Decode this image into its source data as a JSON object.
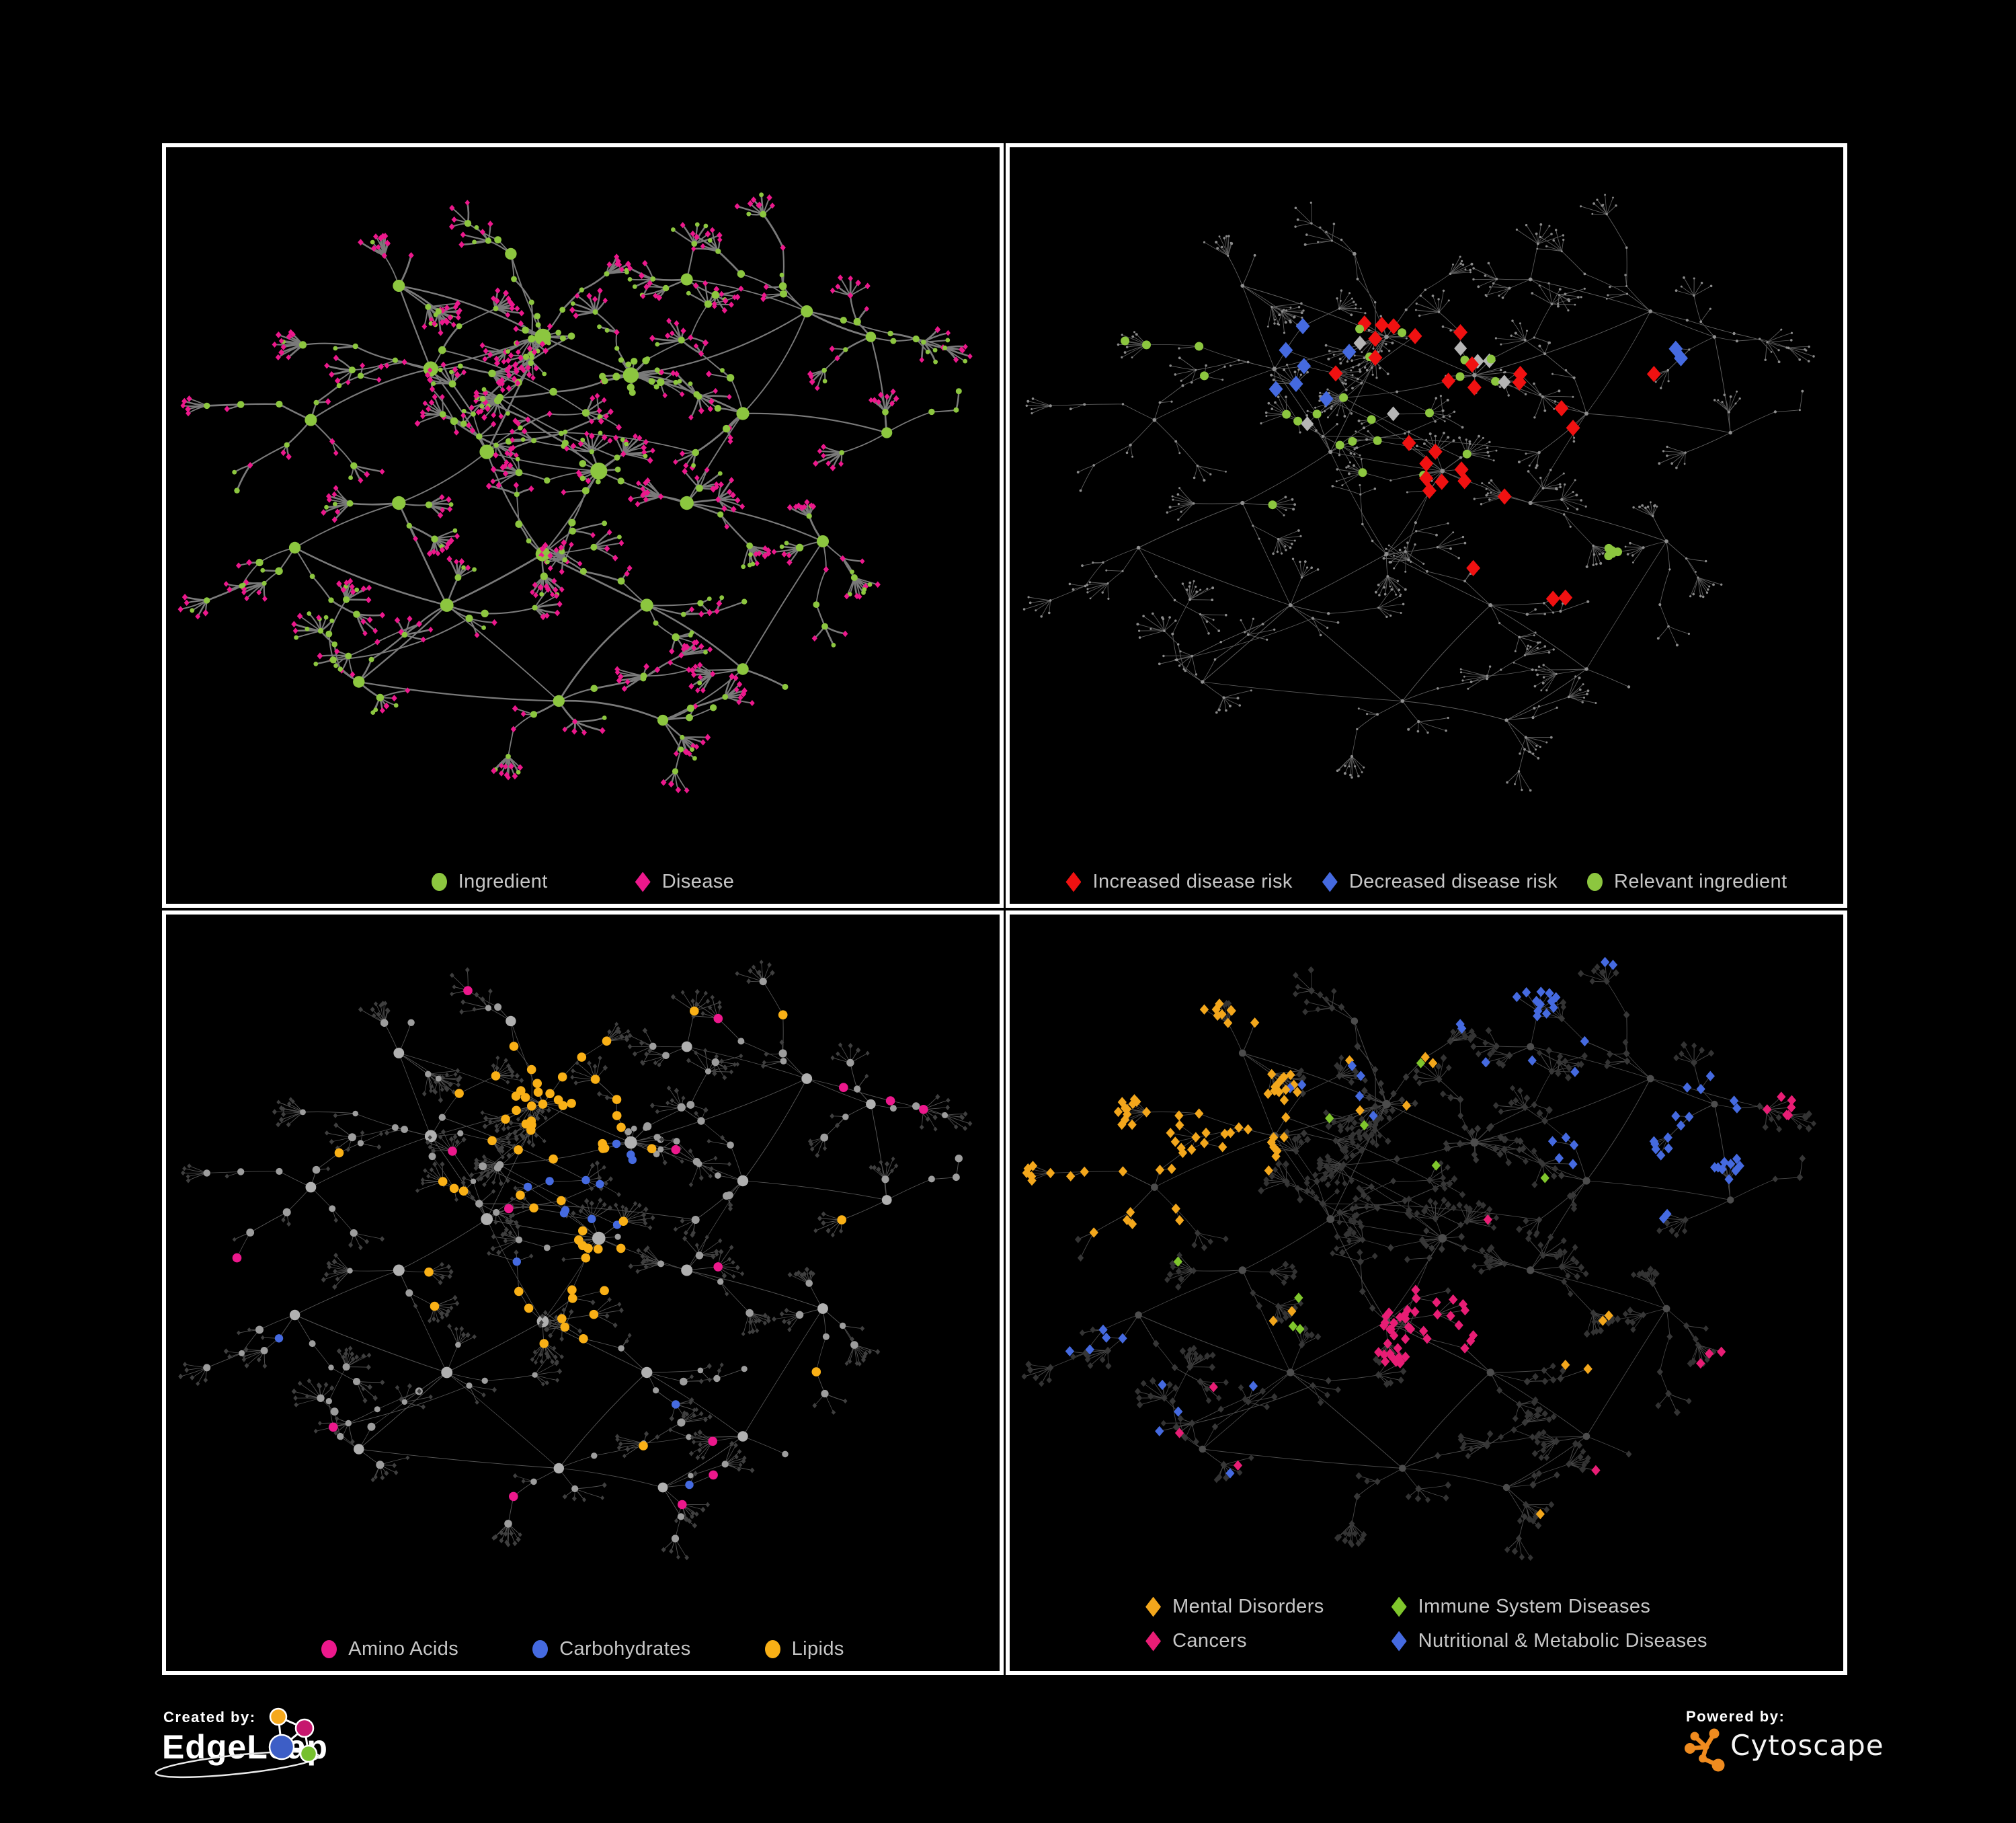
{
  "page": {
    "background": "#000000",
    "panel_border_color": "#ffffff",
    "legend_text_color": "#c6c6c6"
  },
  "footer": {
    "created_by_label": "Created by:",
    "created_by_brand": "EdgeLeap",
    "powered_by_label": "Powered by:",
    "powered_by_brand": "Cytoscape"
  },
  "panels": [
    {
      "name": "ingredient-disease",
      "legend_gap": 130,
      "legend": [
        {
          "shape": "circle",
          "color": "#8cc63f",
          "label": "Ingredient"
        },
        {
          "shape": "diamond",
          "color": "#ec188c",
          "label": "Disease"
        }
      ],
      "style": {
        "bend": 0.18,
        "edge": {
          "color": "#858585",
          "width": 2.3,
          "opacity": 0.92,
          "jitter": 0.5
        },
        "hubScale": [
          4.5,
          6
        ],
        "nodes": {
          "hub": {
            "shape": "circle",
            "color": "#8cc63f",
            "size": [
              6,
              10
            ]
          },
          "mid": {
            "shape": "circle",
            "color": "#8cc63f",
            "size": [
              3.6,
              5.8
            ],
            "altShape": "diamond",
            "altColor": "#ec188c",
            "altSize": 4.4,
            "altFrac": 0.14
          },
          "leaf": {
            "shape": "diamond",
            "color": "#ec188c",
            "size": [
              3.9,
              4.7
            ],
            "altShape": "circle",
            "altColor": "#8cc63f",
            "altSize": 3.4,
            "altFrac": 0.2
          }
        },
        "highlights": []
      }
    },
    {
      "name": "disease-risk",
      "legend_gap": 44,
      "legend": [
        {
          "shape": "diamond",
          "color": "#f01111",
          "label": "Increased disease risk"
        },
        {
          "shape": "diamond",
          "color": "#456ae0",
          "label": "Decreased disease risk"
        },
        {
          "shape": "circle",
          "color": "#8cc63f",
          "label": "Relevant ingredient"
        }
      ],
      "style": {
        "bend": 0.07,
        "edge": {
          "color": "#6e6e6e",
          "width": 0.9,
          "opacity": 0.85,
          "jitter": 0.2
        },
        "hubScale": [
          2.2,
          0.9
        ],
        "nodes": {
          "hub": {
            "shape": "circle",
            "color": "#8f8f8f",
            "size": [
              2,
              3
            ]
          },
          "mid": {
            "shape": "circle",
            "color": "#8f8f8f",
            "size": [
              1.5,
              2.2
            ]
          },
          "leaf": {
            "shape": "circle",
            "color": "#8a8a8a",
            "size": [
              1.4,
              2
            ]
          }
        },
        "highlights": [
          {
            "shape": "diamond",
            "color": "#f01111",
            "size": 11,
            "count": 22,
            "x": [
              0.3,
              0.62
            ],
            "y": [
              0.24,
              0.54
            ],
            "types": [
              "mid"
            ]
          },
          {
            "shape": "diamond",
            "color": "#f01111",
            "size": 11,
            "count": 3,
            "x": [
              0.52,
              0.68
            ],
            "y": [
              0.58,
              0.72
            ],
            "types": [
              "mid",
              "leaf"
            ]
          },
          {
            "shape": "diamond",
            "color": "#f01111",
            "size": 11,
            "count": 3,
            "x": [
              0.66,
              0.8
            ],
            "y": [
              0.28,
              0.44
            ],
            "types": [
              "mid",
              "leaf"
            ]
          },
          {
            "shape": "diamond",
            "color": "#456ae0",
            "size": 11,
            "count": 7,
            "x": [
              0.26,
              0.37
            ],
            "y": [
              0.3,
              0.46
            ],
            "types": [
              "mid"
            ],
            "cluster": true
          },
          {
            "shape": "diamond",
            "color": "#456ae0",
            "size": 11,
            "count": 2,
            "x": [
              0.78,
              0.88
            ],
            "y": [
              0.28,
              0.38
            ],
            "types": [
              "mid",
              "leaf"
            ],
            "cluster": true
          },
          {
            "shape": "diamond",
            "color": "#b5b5b5",
            "size": 10,
            "count": 7,
            "x": [
              0.24,
              0.62
            ],
            "y": [
              0.28,
              0.6
            ],
            "types": [
              "mid"
            ]
          },
          {
            "shape": "circle",
            "color": "#8cc63f",
            "size": 6.5,
            "count": 20,
            "x": [
              0.28,
              0.62
            ],
            "y": [
              0.24,
              0.56
            ],
            "types": [
              "mid"
            ]
          },
          {
            "shape": "circle",
            "color": "#8cc63f",
            "size": 6.5,
            "count": 5,
            "x": [
              0.6,
              0.74
            ],
            "y": [
              0.5,
              0.66
            ],
            "types": [
              "mid",
              "leaf"
            ],
            "cluster": true
          },
          {
            "shape": "circle",
            "color": "#8cc63f",
            "size": 6.5,
            "count": 4,
            "x": [
              0.1,
              0.24
            ],
            "y": [
              0.24,
              0.44
            ],
            "types": [
              "mid",
              "leaf"
            ]
          }
        ]
      }
    },
    {
      "name": "macronutrient-classes",
      "legend_gap": 110,
      "legend": [
        {
          "shape": "circle",
          "color": "#ec188c",
          "label": "Amino Acids"
        },
        {
          "shape": "circle",
          "color": "#456ae0",
          "label": "Carbohydrates"
        },
        {
          "shape": "circle",
          "color": "#f9b016",
          "label": "Lipids"
        }
      ],
      "style": {
        "bend": 0.07,
        "edge": {
          "color": "#9b9b9b",
          "width": 0.85,
          "opacity": 0.55,
          "jitter": 0.3
        },
        "hubScale": [
          5.5,
          3.2
        ],
        "nodes": {
          "hub": {
            "shape": "circle",
            "color": "#b0b0b0",
            "size": [
              6.5,
              9.5
            ]
          },
          "mid": {
            "shape": "circle",
            "color": "#9d9d9d",
            "size": [
              4.2,
              6.2
            ]
          },
          "leaf": {
            "shape": "diamond",
            "color": "#3f3f3f",
            "size": [
              3.1,
              3.9
            ]
          }
        },
        "highlights": [
          {
            "shape": "circle",
            "color": "#f9b016",
            "size": 6.8,
            "count": 34,
            "x": [
              0.28,
              0.52
            ],
            "y": [
              0.14,
              0.42
            ],
            "types": [
              "mid",
              "hub"
            ],
            "cluster": true
          },
          {
            "shape": "circle",
            "color": "#f9b016",
            "size": 6.8,
            "count": 14,
            "x": [
              0.3,
              0.6
            ],
            "y": [
              0.38,
              0.62
            ],
            "types": [
              "mid"
            ]
          },
          {
            "shape": "circle",
            "color": "#f9b016",
            "size": 6.8,
            "count": 9,
            "x": [
              0.45,
              0.6
            ],
            "y": [
              0.55,
              0.7
            ],
            "types": [
              "mid"
            ],
            "cluster": true
          },
          {
            "shape": "circle",
            "color": "#f9b016",
            "size": 6.8,
            "count": 10,
            "x": [
              0.12,
              0.95
            ],
            "y": [
              0.06,
              0.9
            ],
            "types": [
              "mid"
            ]
          },
          {
            "shape": "circle",
            "color": "#456ae0",
            "size": 6.2,
            "count": 11,
            "x": [
              0.38,
              0.52
            ],
            "y": [
              0.26,
              0.44
            ],
            "types": [
              "mid"
            ],
            "cluster": true
          },
          {
            "shape": "circle",
            "color": "#456ae0",
            "size": 6.2,
            "count": 4,
            "x": [
              0.1,
              0.95
            ],
            "y": [
              0.5,
              0.9
            ],
            "types": [
              "mid"
            ]
          },
          {
            "shape": "circle",
            "color": "#ec188c",
            "size": 6.8,
            "count": 15,
            "x": [
              0.04,
              0.96
            ],
            "y": [
              0.04,
              0.94
            ],
            "types": [
              "mid"
            ]
          }
        ]
      }
    },
    {
      "name": "disease-classes",
      "legend_cols": 2,
      "legend": [
        {
          "shape": "diamond",
          "color": "#f3a71c",
          "label": "Mental Disorders"
        },
        {
          "shape": "diamond",
          "color": "#7fc62c",
          "label": "Immune System Diseases"
        },
        {
          "shape": "diamond",
          "color": "#e81d75",
          "label": "Cancers"
        },
        {
          "shape": "diamond",
          "color": "#456ae0",
          "label": "Nutritional & Metabolic Diseases"
        }
      ],
      "style": {
        "bend": 0.07,
        "edge": {
          "color": "#7a7a7a",
          "width": 0.9,
          "opacity": 0.6,
          "jitter": 0.3
        },
        "hubScale": [
          4.2,
          1.6
        ],
        "nodes": {
          "hub": {
            "shape": "circle",
            "color": "#4c4c4c",
            "size": [
              4.2,
              5.6
            ]
          },
          "mid": {
            "shape": "diamond",
            "color": "#373737",
            "size": [
              4.6,
              5.4
            ]
          },
          "leaf": {
            "shape": "diamond",
            "color": "#333333",
            "size": [
              4.2,
              5.2
            ]
          }
        },
        "highlights": [
          {
            "shape": "diamond",
            "color": "#f3a71c",
            "size": 7,
            "count": 72,
            "x": [
              0.02,
              0.3
            ],
            "y": [
              0.24,
              0.62
            ],
            "types": [
              "mid",
              "leaf"
            ],
            "cluster": true
          },
          {
            "shape": "diamond",
            "color": "#f3a71c",
            "size": 7,
            "count": 9,
            "x": [
              0.28,
              0.52
            ],
            "y": [
              0.04,
              0.3
            ],
            "types": [
              "mid",
              "leaf"
            ]
          },
          {
            "shape": "diamond",
            "color": "#f3a71c",
            "size": 7,
            "count": 7,
            "x": [
              0.3,
              0.75
            ],
            "y": [
              0.6,
              0.95
            ],
            "types": [
              "leaf",
              "mid"
            ]
          },
          {
            "shape": "diamond",
            "color": "#e81d75",
            "size": 7,
            "count": 42,
            "x": [
              0.32,
              0.58
            ],
            "y": [
              0.34,
              0.64
            ],
            "types": [
              "mid",
              "leaf"
            ],
            "cluster": true
          },
          {
            "shape": "diamond",
            "color": "#e81d75",
            "size": 7,
            "count": 6,
            "x": [
              0.84,
              0.97
            ],
            "y": [
              0.12,
              0.28
            ],
            "types": [
              "mid",
              "leaf"
            ],
            "cluster": true
          },
          {
            "shape": "diamond",
            "color": "#e81d75",
            "size": 7,
            "count": 8,
            "x": [
              0.04,
              0.96
            ],
            "y": [
              0.45,
              0.95
            ],
            "types": [
              "leaf"
            ]
          },
          {
            "shape": "diamond",
            "color": "#456ae0",
            "size": 7,
            "count": 30,
            "x": [
              0.56,
              0.85
            ],
            "y": [
              0.3,
              0.66
            ],
            "types": [
              "mid",
              "leaf"
            ],
            "cluster": true
          },
          {
            "shape": "diamond",
            "color": "#456ae0",
            "size": 7,
            "count": 12,
            "x": [
              0.6,
              0.95
            ],
            "y": [
              0.04,
              0.26
            ],
            "types": [
              "mid",
              "leaf"
            ],
            "cluster": true
          },
          {
            "shape": "diamond",
            "color": "#456ae0",
            "size": 7,
            "count": 14,
            "x": [
              0.28,
              0.95
            ],
            "y": [
              0.02,
              0.3
            ],
            "types": [
              "mid",
              "leaf"
            ]
          },
          {
            "shape": "diamond",
            "color": "#456ae0",
            "size": 7,
            "count": 10,
            "x": [
              0.02,
              0.35
            ],
            "y": [
              0.6,
              0.95
            ],
            "types": [
              "leaf",
              "mid"
            ]
          },
          {
            "shape": "diamond",
            "color": "#7fc62c",
            "size": 7,
            "count": 9,
            "x": [
              0.1,
              0.9
            ],
            "y": [
              0.08,
              0.92
            ],
            "types": [
              "mid",
              "leaf"
            ]
          }
        ]
      }
    }
  ]
}
